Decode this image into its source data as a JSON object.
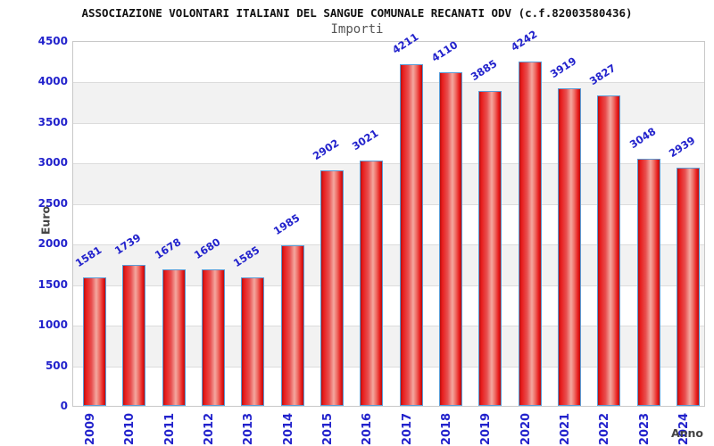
{
  "chart_data": {
    "type": "bar",
    "title": "ASSOCIAZIONE VOLONTARI ITALIANI DEL SANGUE COMUNALE RECANATI ODV (c.f.82003580436)",
    "subtitle": "Importi",
    "xlabel": "Anno",
    "ylabel": "Euro",
    "categories": [
      "2009",
      "2010",
      "2011",
      "2012",
      "2013",
      "2014",
      "2015",
      "2016",
      "2017",
      "2018",
      "2019",
      "2020",
      "2021",
      "2022",
      "2023",
      "2024"
    ],
    "values": [
      1581,
      1739,
      1678,
      1680,
      1585,
      1985,
      2902,
      3021,
      4211,
      4110,
      3885,
      4242,
      3919,
      3827,
      3048,
      2939
    ],
    "ylim": [
      0,
      4500
    ],
    "ytick_step": 500,
    "grid": "horizontal-bands-alternating",
    "legend": "none",
    "bar_labels_rotated": true,
    "x_labels_rotated": true
  },
  "colors": {
    "label_blue": "#2222cc",
    "bar_red": "#e81c1c",
    "bar_red_dark": "#b50f0f",
    "bar_highlight": "#f4a89f",
    "bar_border": "#5b9bd5",
    "band_gray": "#f2f2f2",
    "grid_line": "#dcdcdc",
    "plot_border": "#c8c8c8",
    "axis_title": "#444444",
    "title_color": "#111111",
    "subtitle_color": "#555555"
  }
}
